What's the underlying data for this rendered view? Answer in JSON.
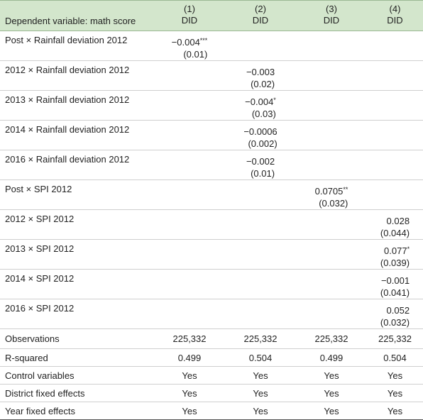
{
  "table": {
    "header": {
      "label": "Dependent variable: math score",
      "columns": [
        {
          "number": "(1)",
          "model": "DID"
        },
        {
          "number": "(2)",
          "model": "DID"
        },
        {
          "number": "(3)",
          "model": "DID"
        },
        {
          "number": "(4)",
          "model": "DID"
        }
      ]
    },
    "coef_rows": [
      {
        "label": "Post × Rainfall deviation 2012",
        "cells": [
          {
            "coef": "−0.004",
            "stars": "***",
            "se": "(0.01)"
          },
          null,
          null,
          null
        ]
      },
      {
        "label": "2012 × Rainfall deviation 2012",
        "cells": [
          null,
          {
            "coef": "−0.003",
            "se": "(0.02)"
          },
          null,
          null
        ]
      },
      {
        "label": "2013 × Rainfall deviation 2012",
        "cells": [
          null,
          {
            "coef": "−0.004",
            "stars": "*",
            "se": "(0.03)"
          },
          null,
          null
        ]
      },
      {
        "label": "2014 × Rainfall deviation 2012",
        "cells": [
          null,
          {
            "coef": "−0.0006",
            "se": "(0.002)"
          },
          null,
          null
        ]
      },
      {
        "label": "2016 × Rainfall deviation 2012",
        "cells": [
          null,
          {
            "coef": "−0.002",
            "se": "(0.01)"
          },
          null,
          null
        ]
      },
      {
        "label": "Post × SPI 2012",
        "cells": [
          null,
          null,
          {
            "coef": "0.0705",
            "stars": "**",
            "se": "(0.032)"
          },
          null
        ]
      },
      {
        "label": "2012 × SPI 2012",
        "cells": [
          null,
          null,
          null,
          {
            "coef": "0.028",
            "se": "(0.044)"
          }
        ]
      },
      {
        "label": "2013 × SPI 2012",
        "cells": [
          null,
          null,
          null,
          {
            "coef": "0.077",
            "stars": "*",
            "se": "(0.039)"
          }
        ]
      },
      {
        "label": "2014 × SPI 2012",
        "cells": [
          null,
          null,
          null,
          {
            "coef": "−0.001",
            "se": "(0.041)"
          }
        ]
      },
      {
        "label": "2016 × SPI 2012",
        "cells": [
          null,
          null,
          null,
          {
            "coef": "0.052",
            "se": "(0.032)"
          }
        ]
      }
    ],
    "stat_rows": [
      {
        "label": "Observations",
        "values": [
          "225,332",
          "225,332",
          "225,332",
          "225,332"
        ]
      },
      {
        "label": "R-squared",
        "values": [
          "0.499",
          "0.504",
          "0.499",
          "0.504"
        ]
      },
      {
        "label": "Control variables",
        "values": [
          "Yes",
          "Yes",
          "Yes",
          "Yes"
        ]
      },
      {
        "label": "District fixed effects",
        "values": [
          "Yes",
          "Yes",
          "Yes",
          "Yes"
        ]
      },
      {
        "label": "Year fixed effects",
        "values": [
          "Yes",
          "Yes",
          "Yes",
          "Yes"
        ]
      }
    ]
  }
}
